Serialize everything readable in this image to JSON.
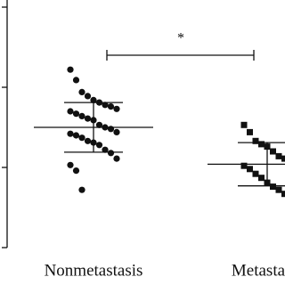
{
  "chart_data": {
    "type": "dot",
    "annotation": "*",
    "ylim": [
      0,
      3
    ],
    "yticks": [
      0,
      1,
      2,
      3
    ],
    "color": "#111111",
    "groups": [
      {
        "label": "Nonmetastasis",
        "marker": "circle",
        "mean": 1.5,
        "sd": 0.31,
        "values": [
          2.22,
          2.09,
          1.94,
          1.89,
          1.84,
          1.81,
          1.78,
          1.76,
          1.73,
          1.7,
          1.67,
          1.64,
          1.61,
          1.59,
          1.53,
          1.5,
          1.48,
          1.44,
          1.42,
          1.4,
          1.37,
          1.33,
          1.31,
          1.28,
          1.22,
          1.18,
          1.11,
          1.03,
          0.96,
          0.72
        ]
      },
      {
        "label": "Metastasis",
        "marker": "square",
        "mean": 1.04,
        "sd": 0.27,
        "values": [
          1.53,
          1.44,
          1.33,
          1.29,
          1.26,
          1.2,
          1.14,
          1.11,
          1.07,
          1.02,
          0.98,
          0.92,
          0.87,
          0.81,
          0.76,
          0.72,
          0.67,
          0.62
        ]
      }
    ]
  }
}
